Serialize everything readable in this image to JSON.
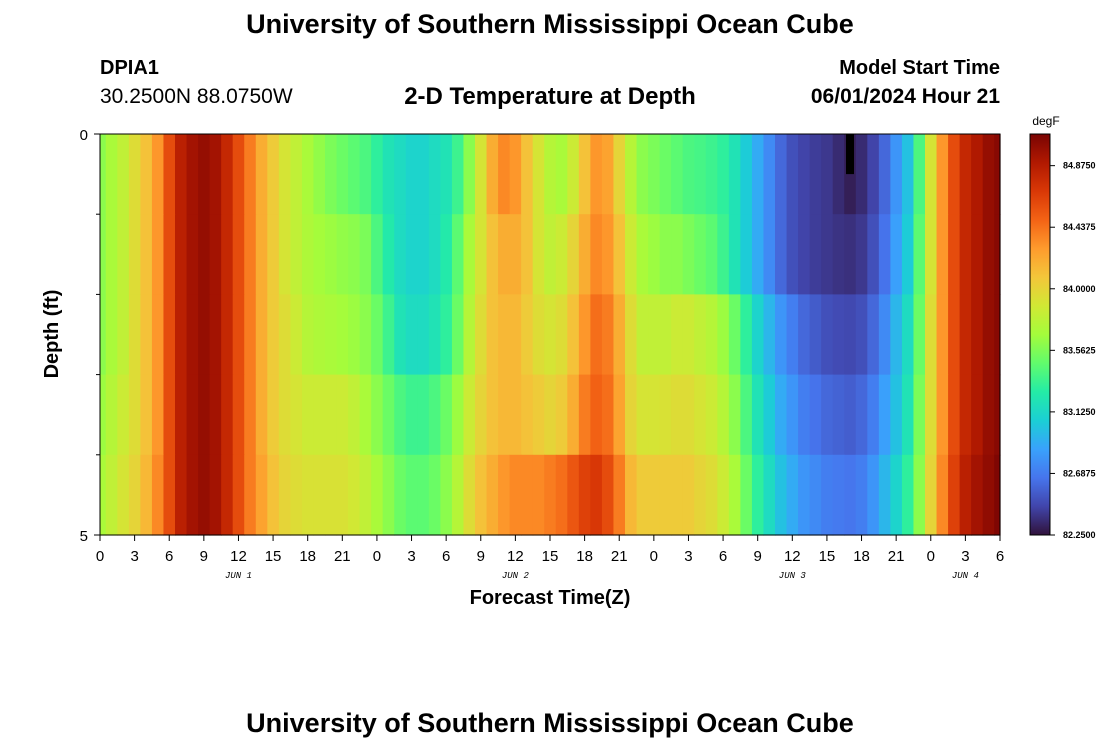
{
  "header": {
    "title": "University of Southern Mississippi Ocean Cube",
    "station_id": "DPIA1",
    "coordinates": "30.2500N  88.0750W",
    "subtitle": "2-D Temperature at Depth",
    "model_start_label": "Model Start Time",
    "model_start_value": "06/01/2024 Hour 21"
  },
  "footer": {
    "title": "University of Southern Mississippi Ocean Cube"
  },
  "chart_data": {
    "type": "heatmap",
    "title": "2-D Temperature at Depth",
    "xlabel": "Forecast Time(Z)",
    "ylabel": "Depth (ft)",
    "x_ticks": [
      "0",
      "3",
      "6",
      "9",
      "12",
      "15",
      "18",
      "21",
      "0",
      "3",
      "6",
      "9",
      "12",
      "15",
      "18",
      "21",
      "0",
      "3",
      "6",
      "9",
      "12",
      "15",
      "18",
      "21",
      "0",
      "3",
      "6"
    ],
    "x_hours": [
      0,
      3,
      6,
      9,
      12,
      15,
      18,
      21,
      24,
      27,
      30,
      33,
      36,
      39,
      42,
      45,
      48,
      51,
      54,
      57,
      60,
      63,
      66,
      69,
      72,
      75,
      78
    ],
    "xlim": [
      0,
      78
    ],
    "day_labels": [
      {
        "label": "JUN 1",
        "hour": 12
      },
      {
        "label": "JUN 2",
        "hour": 36
      },
      {
        "label": "JUN 3",
        "hour": 60
      },
      {
        "label": "JUN 4",
        "hour": 75
      }
    ],
    "y_ticks": [
      "0",
      "5"
    ],
    "ylim": [
      0,
      5
    ],
    "depths": [
      0,
      1,
      2,
      3,
      4,
      5
    ],
    "colorbar": {
      "unit": "degF",
      "min": 82.25,
      "max": 85.1,
      "labels": [
        "84.8750",
        "84.4375",
        "84.0000",
        "83.5625",
        "83.1250",
        "82.6875",
        "82.2500"
      ],
      "colors": [
        "#30123b",
        "#4145ab",
        "#4675ed",
        "#39a2fc",
        "#1bcfd4",
        "#24eca6",
        "#61fc6c",
        "#a4fc3b",
        "#d1e834",
        "#f3c63a",
        "#fe9b2d",
        "#f36315",
        "#d93806",
        "#b11901",
        "#7a0403"
      ]
    },
    "anomaly_marker": {
      "hour": 65,
      "depth_from": 0,
      "depth_to": 0.5,
      "color": "#000000"
    },
    "time_hours": [
      0,
      1,
      2,
      3,
      4,
      5,
      6,
      7,
      8,
      9,
      10,
      11,
      12,
      13,
      14,
      15,
      16,
      17,
      18,
      19,
      20,
      21,
      22,
      23,
      24,
      25,
      26,
      27,
      28,
      29,
      30,
      31,
      32,
      33,
      34,
      35,
      36,
      37,
      38,
      39,
      40,
      41,
      42,
      43,
      44,
      45,
      46,
      47,
      48,
      49,
      50,
      51,
      52,
      53,
      54,
      55,
      56,
      57,
      58,
      59,
      60,
      61,
      62,
      63,
      64,
      65,
      66,
      67,
      68,
      69,
      70,
      71,
      72,
      73,
      74,
      75,
      76,
      77,
      78
    ],
    "series": [
      {
        "name": "0-1 ft",
        "values": [
          83.6,
          83.7,
          83.8,
          83.95,
          84.1,
          84.3,
          84.6,
          84.85,
          84.95,
          85.0,
          84.95,
          84.8,
          84.6,
          84.4,
          84.2,
          84.05,
          83.9,
          83.8,
          83.7,
          83.62,
          83.55,
          83.5,
          83.45,
          83.4,
          83.3,
          83.2,
          83.15,
          83.1,
          83.1,
          83.15,
          83.2,
          83.35,
          83.6,
          83.9,
          84.2,
          84.35,
          84.3,
          84.1,
          83.9,
          83.75,
          83.7,
          83.85,
          84.1,
          84.3,
          84.25,
          84.0,
          83.75,
          83.6,
          83.55,
          83.5,
          83.45,
          83.4,
          83.38,
          83.35,
          83.3,
          83.2,
          83.05,
          82.9,
          82.75,
          82.6,
          82.5,
          82.45,
          82.42,
          82.4,
          82.35,
          82.3,
          82.35,
          82.45,
          82.6,
          82.8,
          83.0,
          83.4,
          83.9,
          84.3,
          84.6,
          84.8,
          84.9,
          85.0,
          85.05
        ]
      },
      {
        "name": "1-2 ft",
        "values": [
          83.6,
          83.7,
          83.8,
          83.95,
          84.1,
          84.3,
          84.6,
          84.85,
          84.95,
          85.0,
          84.95,
          84.8,
          84.6,
          84.4,
          84.2,
          84.05,
          83.9,
          83.8,
          83.72,
          83.68,
          83.65,
          83.62,
          83.6,
          83.55,
          83.4,
          83.25,
          83.15,
          83.1,
          83.1,
          83.15,
          83.25,
          83.45,
          83.7,
          83.9,
          84.1,
          84.2,
          84.2,
          84.1,
          83.9,
          83.8,
          83.85,
          84.0,
          84.2,
          84.35,
          84.3,
          84.1,
          83.85,
          83.7,
          83.65,
          83.6,
          83.6,
          83.55,
          83.5,
          83.45,
          83.35,
          83.2,
          83.05,
          82.9,
          82.75,
          82.6,
          82.5,
          82.45,
          82.42,
          82.4,
          82.38,
          82.37,
          82.4,
          82.5,
          82.65,
          82.85,
          83.05,
          83.45,
          83.9,
          84.3,
          84.6,
          84.8,
          84.9,
          85.0,
          85.05
        ]
      },
      {
        "name": "2-3 ft",
        "values": [
          83.6,
          83.7,
          83.8,
          83.95,
          84.1,
          84.3,
          84.6,
          84.85,
          84.95,
          85.0,
          84.95,
          84.8,
          84.6,
          84.4,
          84.2,
          84.05,
          83.95,
          83.85,
          83.75,
          83.72,
          83.7,
          83.68,
          83.65,
          83.6,
          83.5,
          83.35,
          83.2,
          83.15,
          83.15,
          83.2,
          83.3,
          83.5,
          83.75,
          83.95,
          84.1,
          84.15,
          84.15,
          84.05,
          83.95,
          83.9,
          83.95,
          84.1,
          84.3,
          84.45,
          84.4,
          84.2,
          83.95,
          83.8,
          83.8,
          83.8,
          83.85,
          83.85,
          83.8,
          83.75,
          83.65,
          83.5,
          83.3,
          83.1,
          82.95,
          82.8,
          82.7,
          82.6,
          82.55,
          82.5,
          82.48,
          82.47,
          82.5,
          82.6,
          82.75,
          82.95,
          83.15,
          83.5,
          83.95,
          84.3,
          84.6,
          84.8,
          84.9,
          85.0,
          85.05
        ]
      },
      {
        "name": "3-4 ft",
        "values": [
          83.65,
          83.75,
          83.85,
          83.95,
          84.1,
          84.3,
          84.6,
          84.85,
          84.95,
          85.0,
          84.95,
          84.8,
          84.6,
          84.4,
          84.2,
          84.05,
          83.95,
          83.9,
          83.85,
          83.85,
          83.85,
          83.85,
          83.8,
          83.7,
          83.6,
          83.5,
          83.4,
          83.35,
          83.35,
          83.4,
          83.5,
          83.65,
          83.85,
          84.0,
          84.1,
          84.15,
          84.15,
          84.1,
          84.05,
          84.0,
          84.05,
          84.2,
          84.4,
          84.5,
          84.45,
          84.25,
          84.0,
          83.9,
          83.9,
          83.92,
          83.95,
          83.95,
          83.9,
          83.85,
          83.75,
          83.6,
          83.4,
          83.2,
          83.05,
          82.9,
          82.8,
          82.7,
          82.65,
          82.6,
          82.58,
          82.56,
          82.6,
          82.7,
          82.85,
          83.0,
          83.2,
          83.55,
          83.95,
          84.3,
          84.6,
          84.8,
          84.9,
          85.0,
          85.05
        ]
      },
      {
        "name": "4-5 ft",
        "values": [
          83.7,
          83.8,
          83.9,
          84.0,
          84.15,
          84.35,
          84.6,
          84.85,
          84.95,
          85.0,
          84.95,
          84.8,
          84.6,
          84.4,
          84.25,
          84.1,
          84.0,
          83.95,
          83.92,
          83.92,
          83.92,
          83.92,
          83.88,
          83.8,
          83.7,
          83.6,
          83.5,
          83.45,
          83.45,
          83.5,
          83.6,
          83.75,
          83.95,
          84.1,
          84.2,
          84.3,
          84.35,
          84.35,
          84.35,
          84.4,
          84.45,
          84.55,
          84.65,
          84.7,
          84.6,
          84.4,
          84.15,
          84.05,
          84.05,
          84.05,
          84.05,
          84.05,
          84.0,
          83.95,
          83.85,
          83.7,
          83.5,
          83.3,
          83.15,
          83.0,
          82.9,
          82.8,
          82.75,
          82.7,
          82.68,
          82.66,
          82.7,
          82.8,
          82.95,
          83.1,
          83.3,
          83.6,
          84.0,
          84.35,
          84.65,
          84.85,
          84.95,
          85.02,
          85.08
        ]
      }
    ]
  }
}
